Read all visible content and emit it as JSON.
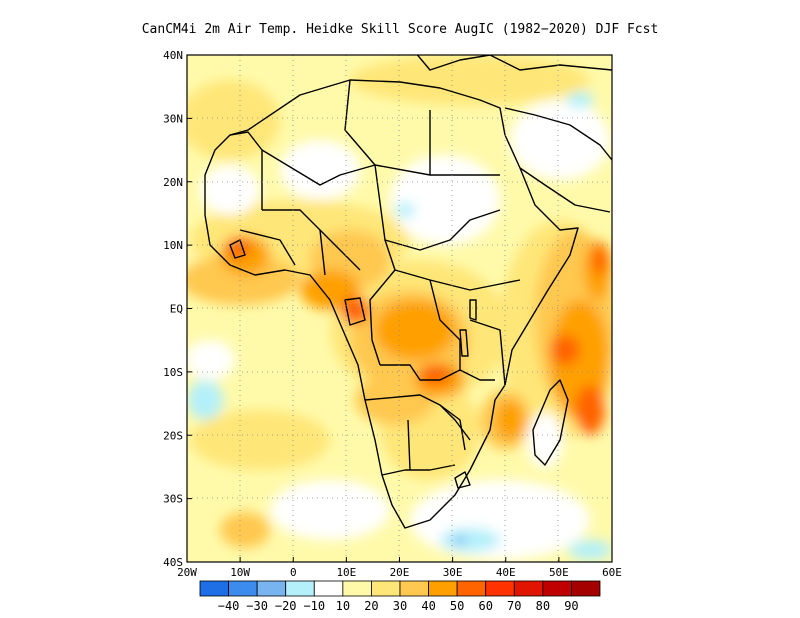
{
  "title": "CanCM4i  2m Air Temp. Heidke Skill Score AugIC (1982−2020) DJF Fcst",
  "axes": {
    "x_ticks": [
      {
        "value": -20,
        "label": "20W"
      },
      {
        "value": -10,
        "label": "10W"
      },
      {
        "value": 0,
        "label": "0"
      },
      {
        "value": 10,
        "label": "10E"
      },
      {
        "value": 20,
        "label": "20E"
      },
      {
        "value": 30,
        "label": "30E"
      },
      {
        "value": 40,
        "label": "40E"
      },
      {
        "value": 50,
        "label": "50E"
      },
      {
        "value": 60,
        "label": "60E"
      }
    ],
    "y_ticks": [
      {
        "value": 40,
        "label": "40N"
      },
      {
        "value": 30,
        "label": "30N"
      },
      {
        "value": 20,
        "label": "20N"
      },
      {
        "value": 10,
        "label": "10N"
      },
      {
        "value": 0,
        "label": "EQ"
      },
      {
        "value": -10,
        "label": "10S"
      },
      {
        "value": -20,
        "label": "20S"
      },
      {
        "value": -30,
        "label": "30S"
      },
      {
        "value": -40,
        "label": "40S"
      }
    ],
    "lon_range": [
      -20,
      60
    ],
    "lat_range": [
      -40,
      40
    ],
    "grid": "dotted"
  },
  "colorbar": {
    "colors": [
      "#1e6ee6",
      "#3c8cf0",
      "#78b4f0",
      "#b4f0fa",
      "#ffffff",
      "#fffaaa",
      "#ffe678",
      "#ffc850",
      "#ffa000",
      "#ff6400",
      "#ff3200",
      "#e11400",
      "#c00000",
      "#a50000"
    ],
    "labels": [
      "−40",
      "−30",
      "−20",
      "−10",
      "10",
      "20",
      "30",
      "40",
      "50",
      "60",
      "70",
      "80",
      "90"
    ]
  },
  "chart_data": {
    "type": "heatmap",
    "variable": "2m Air Temp. Heidke Skill Score",
    "regions": [
      {
        "lon": -10,
        "lat": 8,
        "value": 60
      },
      {
        "lon": 12,
        "lat": 0,
        "value": 60
      },
      {
        "lon": 25,
        "lat": -5,
        "value": 50
      },
      {
        "lon": 28,
        "lat": -12,
        "value": 60
      },
      {
        "lon": 55,
        "lat": 0,
        "value": 50
      },
      {
        "lon": 52,
        "lat": -10,
        "value": 60
      },
      {
        "lon": 58,
        "lat": -15,
        "value": 60
      },
      {
        "lon": -15,
        "lat": -15,
        "value": -10
      },
      {
        "lon": 35,
        "lat": -35,
        "value": -10
      },
      {
        "lon": 15,
        "lat": 20,
        "value": -10
      },
      {
        "lon": 50,
        "lat": 32,
        "value": -10
      }
    ]
  }
}
